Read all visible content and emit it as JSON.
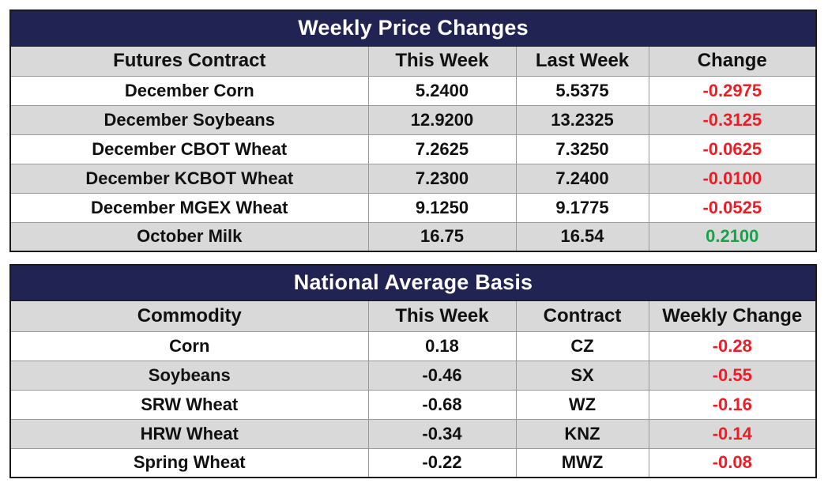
{
  "weekly_price_changes": {
    "title": "Weekly Price Changes",
    "headers": [
      "Futures Contract",
      "This Week",
      "Last Week",
      "Change"
    ],
    "rows": [
      {
        "contract": "December Corn",
        "this_week": "5.2400",
        "last_week": "5.5375",
        "change": "-0.2975"
      },
      {
        "contract": "December Soybeans",
        "this_week": "12.9200",
        "last_week": "13.2325",
        "change": "-0.3125"
      },
      {
        "contract": "December CBOT Wheat",
        "this_week": "7.2625",
        "last_week": "7.3250",
        "change": "-0.0625"
      },
      {
        "contract": "December KCBOT Wheat",
        "this_week": "7.2300",
        "last_week": "7.2400",
        "change": "-0.0100"
      },
      {
        "contract": "December MGEX Wheat",
        "this_week": "9.1250",
        "last_week": "9.1775",
        "change": "-0.0525"
      },
      {
        "contract": "October Milk",
        "this_week": "16.75",
        "last_week": "16.54",
        "change": "0.2100"
      }
    ]
  },
  "national_average_basis": {
    "title": "National Average Basis",
    "headers": [
      "Commodity",
      "This Week",
      "Contract",
      "Weekly Change"
    ],
    "rows": [
      {
        "commodity": "Corn",
        "this_week": "0.18",
        "contract": "CZ",
        "weekly_change": "-0.28"
      },
      {
        "commodity": "Soybeans",
        "this_week": "-0.46",
        "contract": "SX",
        "weekly_change": "-0.55"
      },
      {
        "commodity": "SRW Wheat",
        "this_week": "-0.68",
        "contract": "WZ",
        "weekly_change": "-0.16"
      },
      {
        "commodity": "HRW Wheat",
        "this_week": "-0.34",
        "contract": "KNZ",
        "weekly_change": "-0.14"
      },
      {
        "commodity": "Spring Wheat",
        "this_week": "-0.22",
        "contract": "MWZ",
        "weekly_change": "-0.08"
      }
    ]
  },
  "colors": {
    "title_bar": "#212352",
    "row_shade": "#d9d9d9",
    "negative": "#ee1c24",
    "positive": "#16a34a"
  }
}
